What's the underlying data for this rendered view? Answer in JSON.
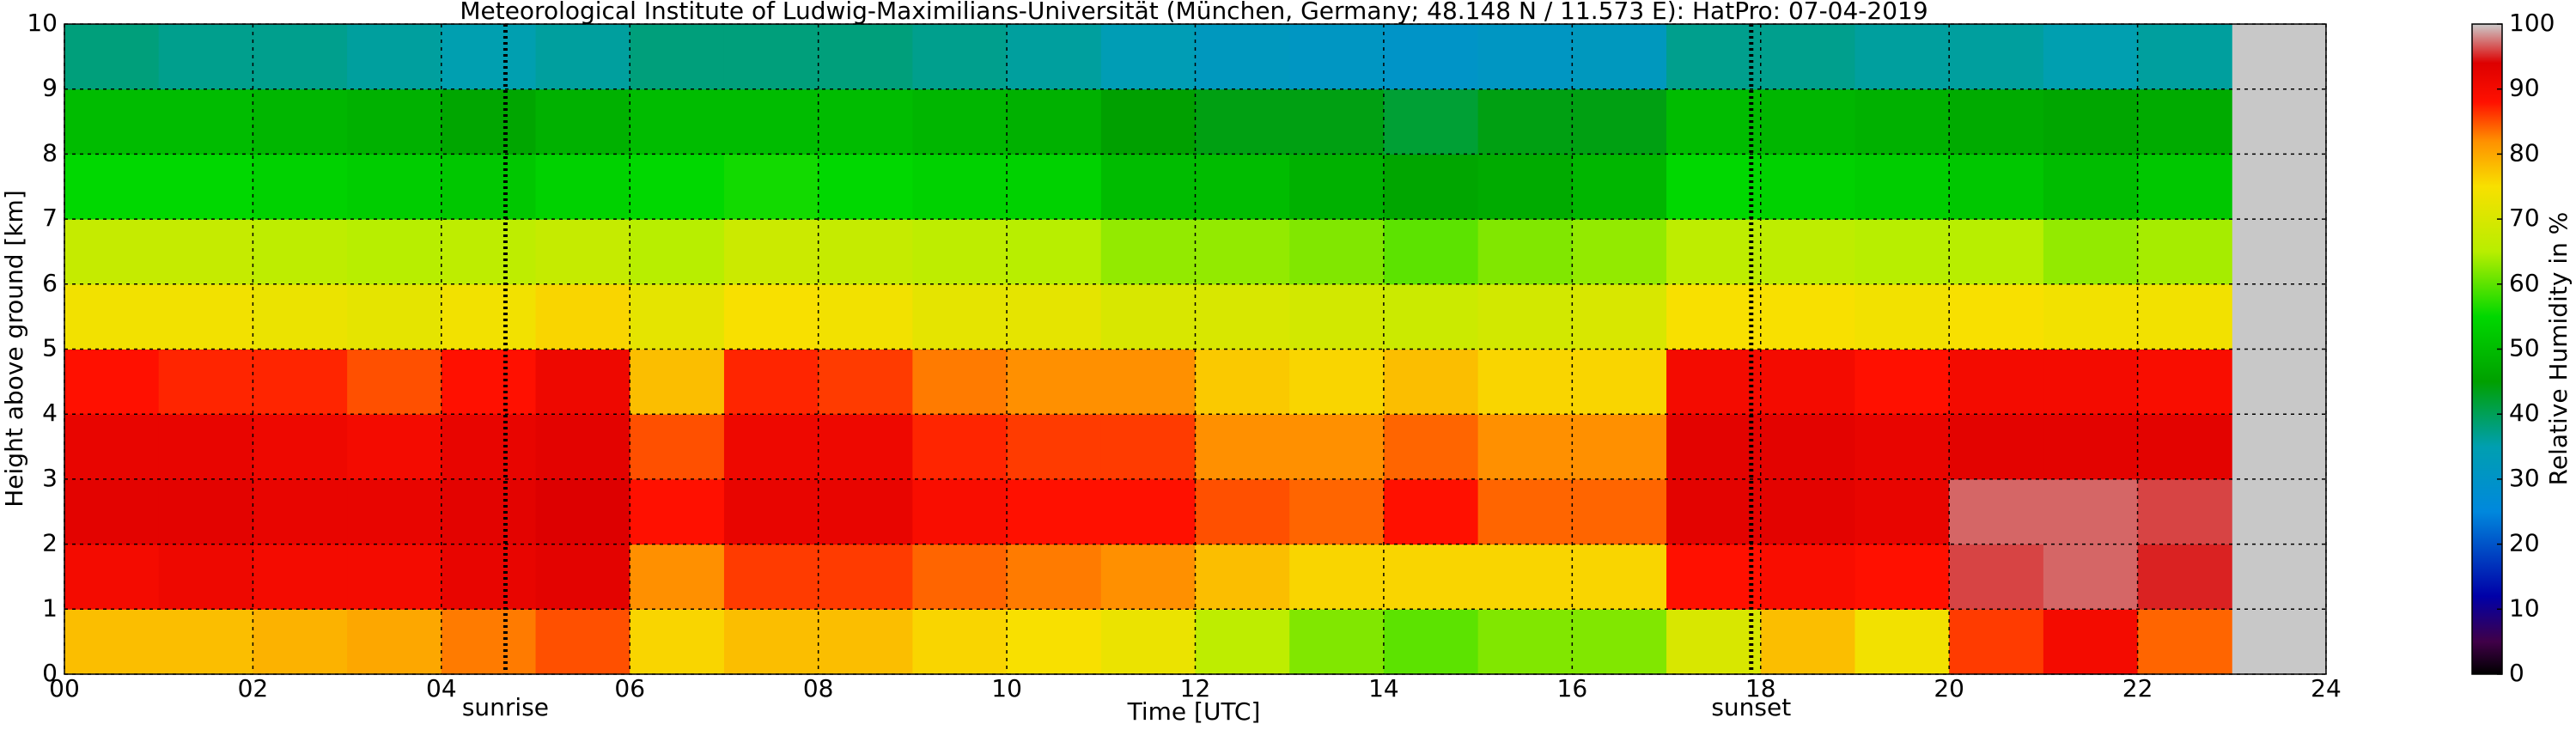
{
  "chart_data": {
    "type": "heatmap",
    "title": "Meteorological Institute of Ludwig-Maximilians-Universität (München, Germany; 48.148 N / 11.573 E):    HatPro: 07-04-2019",
    "x_label": "Time [UTC]",
    "y_label": "Height above ground [km]",
    "colorbar_label": "Relative Humidity in %",
    "x_bins": [
      0,
      1,
      2,
      3,
      4,
      5,
      6,
      7,
      8,
      9,
      10,
      11,
      12,
      13,
      14,
      15,
      16,
      17,
      18,
      19,
      20,
      21,
      22,
      23
    ],
    "y_bins": [
      0,
      1,
      2,
      3,
      4,
      5,
      6,
      7,
      8,
      9,
      10
    ],
    "z": [
      [
        78,
        78,
        79,
        80,
        83,
        85,
        76,
        78,
        78,
        76,
        75,
        73,
        66,
        62,
        60,
        62,
        62,
        70,
        78,
        74,
        86,
        90,
        84
      ],
      [
        90,
        91,
        90,
        90,
        92,
        93,
        82,
        86,
        86,
        84,
        83,
        82,
        78,
        76,
        76,
        76,
        76,
        88,
        89,
        88,
        96,
        97,
        95
      ],
      [
        93,
        93,
        92,
        92,
        93,
        94,
        88,
        92,
        92,
        89,
        88,
        88,
        85,
        84,
        88,
        84,
        84,
        93,
        93,
        92,
        97,
        97,
        96
      ],
      [
        92,
        92,
        91,
        90,
        92,
        93,
        85,
        91,
        91,
        87,
        86,
        86,
        82,
        82,
        84,
        82,
        82,
        93,
        93,
        92,
        93,
        93,
        93
      ],
      [
        88,
        87,
        87,
        85,
        88,
        91,
        78,
        87,
        86,
        83,
        82,
        82,
        77,
        76,
        78,
        76,
        76,
        90,
        90,
        88,
        90,
        90,
        89
      ],
      [
        74,
        74,
        73,
        72,
        74,
        76,
        72,
        75,
        74,
        72,
        72,
        70,
        70,
        69,
        68,
        69,
        70,
        75,
        75,
        74,
        75,
        74,
        74
      ],
      [
        67,
        67,
        66,
        65,
        66,
        67,
        65,
        68,
        67,
        66,
        65,
        63,
        63,
        62,
        60,
        62,
        63,
        66,
        66,
        65,
        65,
        63,
        64
      ],
      [
        55,
        55,
        54,
        53,
        52,
        54,
        55,
        56,
        55,
        54,
        54,
        50,
        50,
        48,
        46,
        47,
        49,
        55,
        54,
        53,
        52,
        50,
        52
      ],
      [
        50,
        50,
        49,
        48,
        46,
        48,
        50,
        50,
        50,
        49,
        48,
        45,
        44,
        44,
        42,
        44,
        44,
        50,
        49,
        48,
        47,
        46,
        47
      ],
      [
        38,
        37,
        37,
        36,
        35,
        36,
        38,
        38,
        38,
        37,
        36,
        34,
        32,
        31,
        30,
        31,
        32,
        37,
        37,
        36,
        36,
        35,
        36
      ]
    ],
    "colorscale": [
      {
        "value": 0,
        "color": "#000000"
      },
      {
        "value": 5,
        "color": "#400048"
      },
      {
        "value": 12,
        "color": "#0000a8"
      },
      {
        "value": 25,
        "color": "#0088dd"
      },
      {
        "value": 35,
        "color": "#009fb0"
      },
      {
        "value": 45,
        "color": "#00a000"
      },
      {
        "value": 55,
        "color": "#00d800"
      },
      {
        "value": 65,
        "color": "#b8ee00"
      },
      {
        "value": 75,
        "color": "#f8e000"
      },
      {
        "value": 82,
        "color": "#ff9000"
      },
      {
        "value": 88,
        "color": "#ff1000"
      },
      {
        "value": 94,
        "color": "#dd0000"
      },
      {
        "value": 100,
        "color": "#cccccc"
      }
    ],
    "xlim": [
      0,
      24
    ],
    "xticks": [
      {
        "value": 0,
        "label": "00"
      },
      {
        "value": 2,
        "label": "02"
      },
      {
        "value": 4,
        "label": "04"
      },
      {
        "value": 6,
        "label": "06"
      },
      {
        "value": 8,
        "label": "08"
      },
      {
        "value": 10,
        "label": "10"
      },
      {
        "value": 12,
        "label": "12"
      },
      {
        "value": 14,
        "label": "14"
      },
      {
        "value": 16,
        "label": "16"
      },
      {
        "value": 18,
        "label": "18"
      },
      {
        "value": 20,
        "label": "20"
      },
      {
        "value": 22,
        "label": "22"
      },
      {
        "value": 24,
        "label": "24"
      }
    ],
    "ylim": [
      0,
      10
    ],
    "yticks": [
      0,
      1,
      2,
      3,
      4,
      5,
      6,
      7,
      8,
      9,
      10
    ],
    "clim": [
      0,
      100
    ],
    "cticks": [
      0,
      10,
      20,
      30,
      40,
      50,
      60,
      70,
      80,
      90,
      100
    ],
    "grid": true,
    "annotations": [
      {
        "text": "sunrise",
        "x": 4.68
      },
      {
        "text": "sunset",
        "x": 17.9
      }
    ]
  }
}
